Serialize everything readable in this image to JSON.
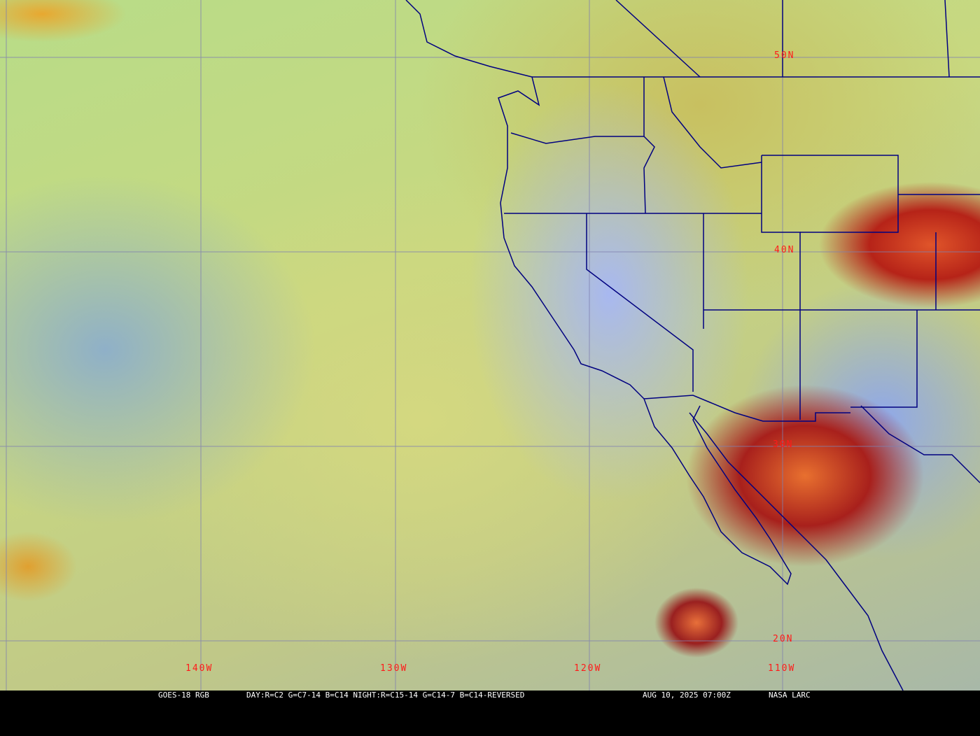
{
  "map": {
    "lat_labels": [
      "50N",
      "40N",
      "30N",
      "20N"
    ],
    "lon_labels": [
      "140W",
      "130W",
      "120W",
      "110W"
    ],
    "colors": {
      "grid": "#8080b0",
      "borders": "#000080",
      "labels": "#ff1a1a"
    }
  },
  "caption": {
    "satellite": "GOES-18 RGB",
    "recipe": "DAY:R=C2 G=C7-14 B=C14 NIGHT:R=C15-14 G=C14-7 B=C14-REVERSED",
    "datetime": "AUG 10, 2025 07:00Z",
    "source": "NASA LARC"
  }
}
